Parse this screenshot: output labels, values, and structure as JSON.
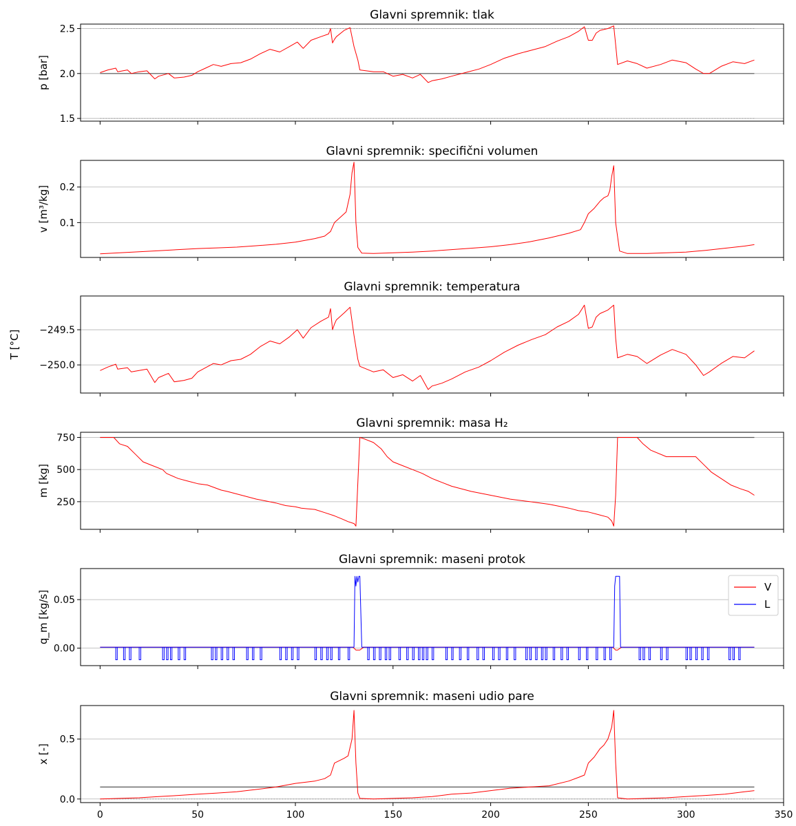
{
  "chart_data": [
    {
      "type": "line",
      "title": "Glavni spremnik: tlak",
      "ylabel": "p [bar]",
      "xlabel": "",
      "xlim": [
        -10,
        350
      ],
      "ylim": [
        1.47,
        2.55
      ],
      "yticks": [
        1.5,
        2.0,
        2.5
      ],
      "ytick_labels": [
        "1.5",
        "2.0",
        "2.5"
      ],
      "grid": "y",
      "reference_lines": [
        {
          "y": 2.5,
          "color": "#9a9a9a",
          "style": "dotted"
        },
        {
          "y": 2.0,
          "color": "#555555",
          "style": "solid"
        },
        {
          "y": 1.5,
          "color": "#9a9a9a",
          "style": "dotted"
        }
      ],
      "series": [
        {
          "color": "#ff0000",
          "x": [
            0,
            4,
            8,
            9,
            14,
            16,
            20,
            24,
            28,
            30,
            35,
            38,
            43,
            47,
            50,
            54,
            58,
            62,
            67,
            72,
            77,
            82,
            87,
            92,
            97,
            101,
            104,
            108,
            113,
            117,
            118,
            119,
            120,
            121,
            125,
            128,
            130,
            132,
            133,
            140,
            145,
            150,
            155,
            160,
            164,
            168,
            170,
            175,
            180,
            187,
            194,
            200,
            207,
            214,
            221,
            228,
            234,
            240,
            245,
            248,
            250,
            252,
            254,
            256,
            260,
            263,
            264,
            265,
            270,
            275,
            280,
            287,
            293,
            300,
            305,
            309,
            312,
            318,
            324,
            330,
            335
          ],
          "y": [
            2.01,
            2.04,
            2.06,
            2.02,
            2.04,
            2.0,
            2.02,
            2.03,
            1.94,
            1.97,
            2.0,
            1.95,
            1.96,
            1.98,
            2.02,
            2.06,
            2.1,
            2.08,
            2.11,
            2.12,
            2.16,
            2.22,
            2.27,
            2.24,
            2.3,
            2.35,
            2.28,
            2.37,
            2.41,
            2.44,
            2.5,
            2.34,
            2.38,
            2.41,
            2.48,
            2.51,
            2.3,
            2.15,
            2.04,
            2.02,
            2.02,
            1.97,
            1.99,
            1.95,
            1.99,
            1.9,
            1.92,
            1.94,
            1.97,
            2.01,
            2.05,
            2.1,
            2.17,
            2.22,
            2.26,
            2.3,
            2.36,
            2.41,
            2.47,
            2.52,
            2.37,
            2.37,
            2.45,
            2.48,
            2.5,
            2.53,
            2.32,
            2.1,
            2.14,
            2.11,
            2.06,
            2.1,
            2.15,
            2.12,
            2.05,
            2.0,
            2.0,
            2.08,
            2.13,
            2.11,
            2.15
          ]
        }
      ]
    },
    {
      "type": "line",
      "title": "Glavni spremnik: specifični volumen",
      "ylabel": "v [m³/kg]",
      "xlabel": "",
      "xlim": [
        -10,
        350
      ],
      "ylim": [
        0.002,
        0.275
      ],
      "yticks": [
        0.1,
        0.2
      ],
      "ytick_labels": [
        "0.1",
        "0.2"
      ],
      "grid": "y",
      "series": [
        {
          "color": "#ff0000",
          "x": [
            0,
            10,
            20,
            30,
            40,
            50,
            60,
            70,
            80,
            90,
            100,
            110,
            115,
            118,
            120,
            124,
            126,
            128,
            129,
            130,
            131,
            132,
            134,
            140,
            150,
            160,
            170,
            180,
            190,
            200,
            210,
            220,
            230,
            240,
            246,
            248,
            250,
            253,
            256,
            258,
            260,
            261,
            262,
            263,
            264,
            266,
            270,
            280,
            290,
            300,
            310,
            320,
            330,
            335
          ],
          "y": [
            0.012,
            0.015,
            0.018,
            0.021,
            0.024,
            0.027,
            0.029,
            0.031,
            0.035,
            0.039,
            0.045,
            0.055,
            0.062,
            0.075,
            0.1,
            0.12,
            0.13,
            0.18,
            0.24,
            0.27,
            0.1,
            0.03,
            0.014,
            0.013,
            0.015,
            0.017,
            0.02,
            0.024,
            0.028,
            0.032,
            0.038,
            0.046,
            0.057,
            0.07,
            0.08,
            0.1,
            0.125,
            0.14,
            0.16,
            0.17,
            0.175,
            0.19,
            0.23,
            0.26,
            0.1,
            0.02,
            0.013,
            0.013,
            0.015,
            0.017,
            0.022,
            0.028,
            0.034,
            0.038
          ]
        }
      ]
    },
    {
      "type": "line",
      "title": "Glavni spremnik: temperatura",
      "ylabel": "T [°C]",
      "xlabel": "",
      "xlim": [
        -10,
        350
      ],
      "ylim": [
        -250.4,
        -249.02
      ],
      "yticks": [
        -250.0,
        -249.5
      ],
      "ytick_labels": [
        "−250.0",
        "−249.5"
      ],
      "grid": "y",
      "series": [
        {
          "color": "#ff0000",
          "x": [
            0,
            4,
            8,
            9,
            14,
            16,
            20,
            24,
            28,
            30,
            35,
            38,
            43,
            47,
            50,
            54,
            58,
            62,
            67,
            72,
            77,
            82,
            87,
            92,
            97,
            101,
            104,
            108,
            113,
            117,
            118,
            119,
            120,
            121,
            125,
            128,
            130,
            132,
            133,
            140,
            145,
            150,
            155,
            160,
            164,
            168,
            170,
            175,
            180,
            187,
            194,
            200,
            207,
            214,
            221,
            228,
            234,
            240,
            245,
            248,
            250,
            252,
            254,
            256,
            260,
            263,
            264,
            265,
            270,
            275,
            280,
            287,
            293,
            300,
            305,
            309,
            312,
            318,
            324,
            330,
            335
          ],
          "y": [
            -250.08,
            -250.03,
            -249.99,
            -250.06,
            -250.04,
            -250.1,
            -250.08,
            -250.06,
            -250.25,
            -250.18,
            -250.12,
            -250.24,
            -250.22,
            -250.19,
            -250.1,
            -250.04,
            -249.98,
            -250.0,
            -249.94,
            -249.92,
            -249.85,
            -249.74,
            -249.66,
            -249.7,
            -249.6,
            -249.5,
            -249.62,
            -249.47,
            -249.38,
            -249.32,
            -249.2,
            -249.5,
            -249.42,
            -249.36,
            -249.26,
            -249.18,
            -249.58,
            -249.92,
            -250.02,
            -250.1,
            -250.07,
            -250.18,
            -250.14,
            -250.23,
            -250.15,
            -250.35,
            -250.3,
            -250.26,
            -250.2,
            -250.1,
            -250.03,
            -249.94,
            -249.82,
            -249.72,
            -249.64,
            -249.57,
            -249.46,
            -249.38,
            -249.28,
            -249.15,
            -249.48,
            -249.46,
            -249.32,
            -249.27,
            -249.22,
            -249.15,
            -249.62,
            -249.9,
            -249.85,
            -249.88,
            -249.98,
            -249.86,
            -249.78,
            -249.85,
            -250.0,
            -250.15,
            -250.1,
            -249.98,
            -249.88,
            -249.9,
            -249.8
          ]
        }
      ]
    },
    {
      "type": "line",
      "title": "Glavni spremnik: masa H₂",
      "ylabel": "m [kg]",
      "xlabel": "",
      "xlim": [
        -10,
        350
      ],
      "ylim": [
        35,
        790
      ],
      "yticks": [
        250,
        500,
        750
      ],
      "ytick_labels": [
        "250",
        "500",
        "750"
      ],
      "grid": "y",
      "reference_lines": [
        {
          "y": 750,
          "color": "#555555",
          "style": "solid"
        }
      ],
      "series": [
        {
          "color": "#ff0000",
          "x": [
            0,
            7,
            10,
            14,
            18,
            22,
            27,
            32,
            34,
            40,
            45,
            50,
            55,
            62,
            65,
            70,
            75,
            80,
            85,
            90,
            95,
            100,
            103,
            106,
            110,
            115,
            120,
            124,
            127,
            130,
            131,
            132,
            133,
            135,
            140,
            144,
            147,
            150,
            155,
            160,
            165,
            170,
            175,
            180,
            190,
            200,
            210,
            220,
            230,
            240,
            245,
            250,
            255,
            260,
            262,
            263,
            264,
            265,
            270,
            275,
            278,
            282,
            290,
            300,
            305,
            309,
            313,
            318,
            323,
            328,
            332,
            335
          ],
          "y": [
            750,
            750,
            700,
            680,
            620,
            560,
            530,
            500,
            470,
            430,
            410,
            390,
            380,
            340,
            330,
            310,
            290,
            270,
            255,
            240,
            220,
            210,
            200,
            195,
            190,
            165,
            140,
            115,
            95,
            80,
            60,
            400,
            750,
            740,
            710,
            660,
            600,
            560,
            530,
            500,
            470,
            430,
            400,
            370,
            330,
            300,
            270,
            250,
            230,
            200,
            180,
            170,
            150,
            130,
            100,
            60,
            300,
            750,
            750,
            750,
            700,
            650,
            600,
            600,
            600,
            540,
            480,
            430,
            380,
            350,
            330,
            300
          ]
        }
      ]
    },
    {
      "type": "line",
      "title": "Glavni spremnik: maseni protok",
      "ylabel": "q_m [kg/s]",
      "xlabel": "",
      "xlim": [
        -10,
        350
      ],
      "ylim": [
        -0.018,
        0.082
      ],
      "yticks": [
        0.0,
        0.05
      ],
      "ytick_labels": [
        "0.00",
        "0.05"
      ],
      "grid": "y",
      "legend": "right",
      "flow_dip": -0.012,
      "series": [
        {
          "name": "V",
          "color": "#ff0000",
          "x": [
            0,
            129.5,
            131,
            133,
            135,
            262.5,
            264,
            265,
            267,
            335
          ],
          "y": [
            0.001,
            0.001,
            -0.002,
            -0.002,
            0.001,
            0.001,
            -0.002,
            -0.002,
            0.001,
            0.001
          ]
        },
        {
          "name": "L",
          "color": "#0000ff",
          "x": [
            0,
            130,
            130.5,
            131,
            131.5,
            132,
            132.5,
            133,
            134,
            263,
            263.5,
            264,
            264.5,
            266,
            266.5,
            267,
            335
          ],
          "y": [
            0.001,
            0.001,
            0.074,
            0.064,
            0.074,
            0.068,
            0.074,
            0.074,
            0.001,
            0.001,
            0.064,
            0.074,
            0.074,
            0.074,
            0.001,
            0.001,
            0.001
          ],
          "dips": [
            8,
            12,
            15,
            20,
            32,
            34,
            36,
            40,
            43,
            57,
            59,
            62,
            65,
            68,
            75,
            78,
            82,
            92,
            95,
            98,
            101,
            110,
            113,
            116,
            118,
            122,
            127,
            137,
            140,
            143,
            146,
            148,
            153,
            157,
            160,
            163,
            165,
            167,
            170,
            177,
            180,
            184,
            188,
            193,
            196,
            201,
            204,
            208,
            212,
            218,
            220,
            223,
            226,
            228,
            232,
            236,
            239,
            245,
            249,
            254,
            258,
            261,
            276,
            278,
            281,
            287,
            290,
            300,
            302,
            305,
            308,
            311,
            322,
            324,
            327
          ]
        }
      ]
    },
    {
      "type": "line",
      "title": "Glavni spremnik: maseni udio pare",
      "ylabel": "x [-]",
      "xlabel": "",
      "xlim": [
        -10,
        350
      ],
      "ylim": [
        -0.03,
        0.78
      ],
      "xticks": [
        0,
        50,
        100,
        150,
        200,
        250,
        300,
        350
      ],
      "xtick_labels": [
        "0",
        "50",
        "100",
        "150",
        "200",
        "250",
        "300",
        "350"
      ],
      "yticks": [
        0.0,
        0.5
      ],
      "ytick_labels": [
        "0.0",
        "0.5"
      ],
      "grid": "y",
      "reference_lines": [
        {
          "y": 0.1,
          "color": "#555555",
          "style": "solid"
        },
        {
          "y": 0.0,
          "color": "#9a9a9a",
          "style": "dotted"
        }
      ],
      "series": [
        {
          "color": "#ff0000",
          "x": [
            0,
            10,
            20,
            30,
            40,
            50,
            60,
            70,
            80,
            90,
            100,
            110,
            115,
            118,
            120,
            125,
            127,
            129,
            130,
            131,
            132,
            133,
            140,
            150,
            160,
            170,
            180,
            190,
            200,
            210,
            220,
            230,
            240,
            245,
            248,
            250,
            253,
            256,
            258,
            260,
            262,
            263,
            264,
            265,
            270,
            280,
            290,
            300,
            310,
            320,
            330,
            335
          ],
          "y": [
            0.0,
            0.005,
            0.01,
            0.02,
            0.03,
            0.04,
            0.05,
            0.06,
            0.08,
            0.1,
            0.13,
            0.15,
            0.17,
            0.2,
            0.3,
            0.34,
            0.36,
            0.5,
            0.74,
            0.3,
            0.05,
            0.005,
            0.0,
            0.005,
            0.01,
            0.02,
            0.04,
            0.05,
            0.07,
            0.09,
            0.1,
            0.11,
            0.15,
            0.18,
            0.2,
            0.3,
            0.35,
            0.42,
            0.45,
            0.5,
            0.6,
            0.74,
            0.3,
            0.01,
            0.0,
            0.005,
            0.01,
            0.02,
            0.03,
            0.04,
            0.06,
            0.07
          ]
        }
      ]
    }
  ]
}
